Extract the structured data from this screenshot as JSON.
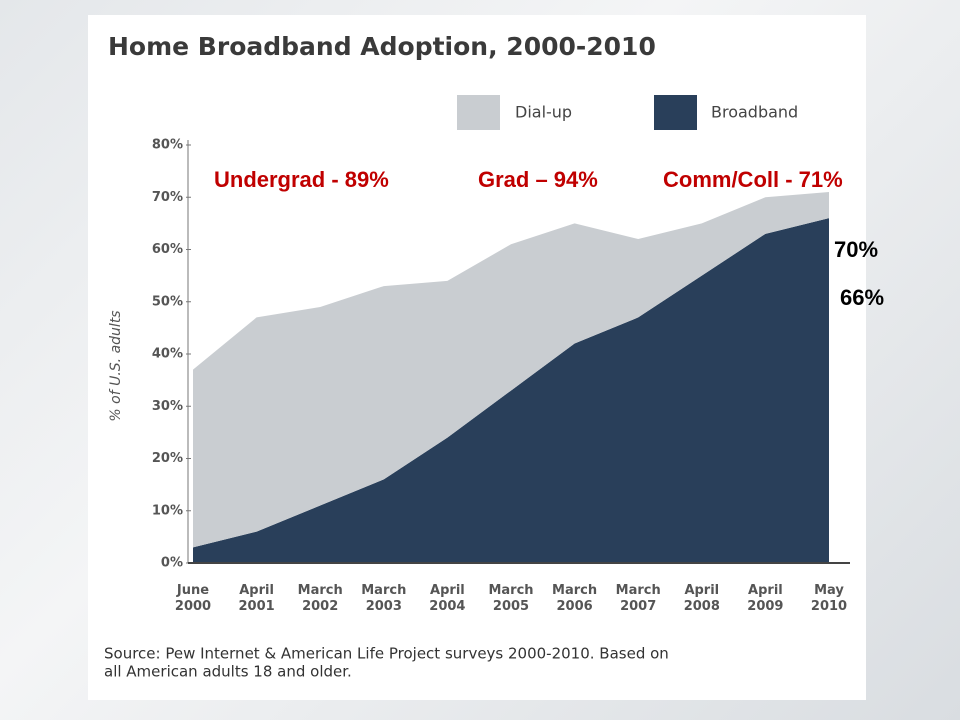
{
  "chart_data": {
    "type": "stacked-area",
    "title": "Home Broadband Adoption, 2000-2010",
    "y_label": "% of U.S. adults",
    "categories": [
      "June 2000",
      "April 2001",
      "March 2002",
      "March 2003",
      "April 2004",
      "March 2005",
      "March 2006",
      "March 2007",
      "April 2008",
      "April 2009",
      "May 2010"
    ],
    "series": [
      {
        "name": "Broadband",
        "color": "#293f5a",
        "values": [
          3,
          6,
          11,
          16,
          24,
          33,
          42,
          47,
          55,
          63,
          66
        ]
      },
      {
        "name": "Dial-up",
        "color": "#c9cdd1",
        "values": [
          34,
          41,
          38,
          37,
          30,
          28,
          23,
          15,
          10,
          7,
          5
        ]
      }
    ],
    "legend_order": [
      1,
      0
    ],
    "ylim": [
      0,
      80
    ],
    "yticks": [
      {
        "value": 0,
        "label": "0%"
      },
      {
        "value": 10,
        "label": "10%"
      },
      {
        "value": 20,
        "label": "20%"
      },
      {
        "value": 30,
        "label": "30%"
      },
      {
        "value": 40,
        "label": "40%"
      },
      {
        "value": 50,
        "label": "50%"
      },
      {
        "value": 60,
        "label": "60%"
      },
      {
        "value": 70,
        "label": "70%"
      },
      {
        "value": 80,
        "label": "80%"
      }
    ],
    "source": [
      "Source: Pew Internet & American Life Project surveys 2000-2010. Based on",
      "all American adults 18 and older."
    ],
    "annotations": [
      {
        "text": "Undergrad - 89%",
        "color": "#c00000"
      },
      {
        "text": "Grad – 94%",
        "color": "#c00000"
      },
      {
        "text": "Comm/Coll - 71%",
        "color": "#c00000"
      },
      {
        "text": "70%",
        "color": "#000000"
      },
      {
        "text": "66%",
        "color": "#000000"
      }
    ]
  }
}
